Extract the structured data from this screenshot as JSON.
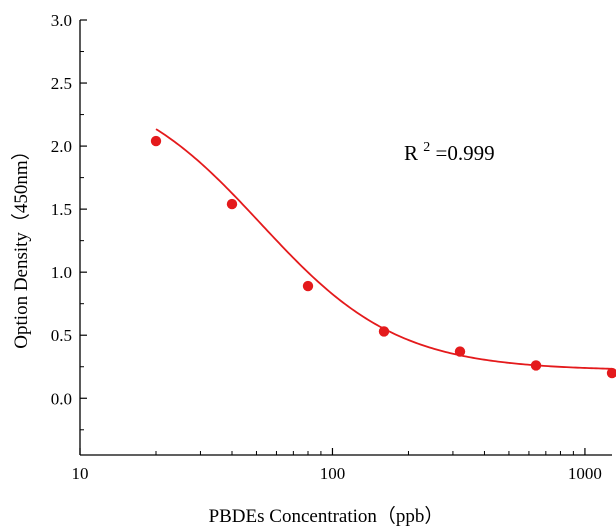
{
  "chart_data": {
    "type": "scatter",
    "title": "",
    "xlabel": "PBDEs Concentration（ppb）",
    "ylabel": "Option Density（450nm）",
    "x_scale": "log",
    "xlim": [
      10,
      1280
    ],
    "ylim": [
      -0.45,
      3.0
    ],
    "x_ticks": [
      10,
      100,
      1000
    ],
    "x_tick_labels": [
      "10",
      "100",
      "1000"
    ],
    "y_ticks": [
      0.0,
      0.5,
      1.0,
      1.5,
      2.0,
      2.5,
      3.0
    ],
    "y_tick_labels": [
      "0.0",
      "0.5",
      "1.0",
      "1.5",
      "2.0",
      "2.5",
      "3.0"
    ],
    "grid": false,
    "legend": "none",
    "series": [
      {
        "x": [
          20,
          40,
          80,
          160,
          320,
          640,
          1280
        ],
        "y": [
          2.04,
          1.54,
          0.89,
          0.53,
          0.37,
          0.26,
          0.2
        ],
        "color": "#e41a1c"
      }
    ],
    "fit_curve": {
      "model": "four-parameter logistic",
      "top": 2.55,
      "bottom": 0.22,
      "ic50": 52,
      "hill": 1.6,
      "x_range": [
        20,
        1280
      ],
      "color": "#e41a1c"
    },
    "annotation": {
      "base": "R",
      "superscript": "2",
      "value": "=0.999"
    }
  }
}
